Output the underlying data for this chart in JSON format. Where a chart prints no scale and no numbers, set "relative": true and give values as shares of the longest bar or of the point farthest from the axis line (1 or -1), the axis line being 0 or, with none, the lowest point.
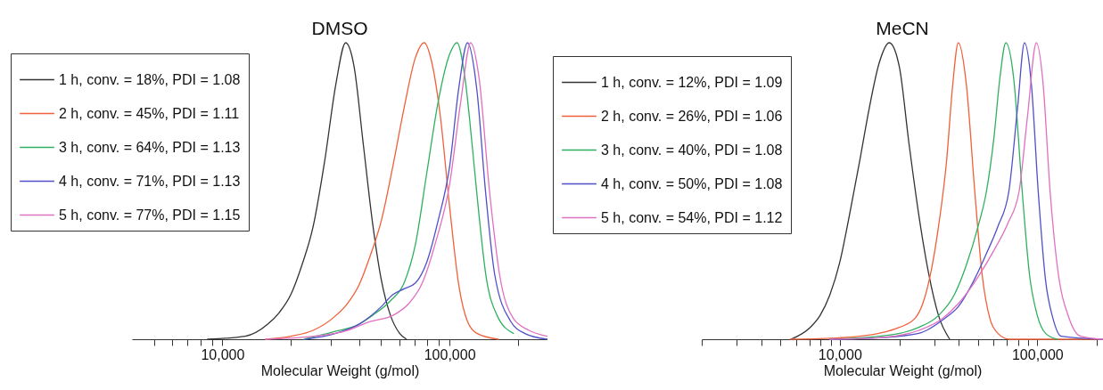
{
  "chart_data": [
    {
      "type": "line",
      "title": "DMSO",
      "xlabel": "Molecular Weight (g/mol)",
      "log": "x",
      "relative": true,
      "legend": "top left",
      "xlim": [
        4000,
        270000
      ],
      "xticks": [
        {
          "value": 5000,
          "label": null
        },
        {
          "value": 6000,
          "label": null
        },
        {
          "value": 7000,
          "label": null
        },
        {
          "value": 8000,
          "label": null
        },
        {
          "value": 9000,
          "label": null
        },
        {
          "value": 10000,
          "label": "10,000"
        },
        {
          "value": 20000,
          "label": null
        },
        {
          "value": 30000,
          "label": null
        },
        {
          "value": 40000,
          "label": null
        },
        {
          "value": 50000,
          "label": null
        },
        {
          "value": 60000,
          "label": null
        },
        {
          "value": 70000,
          "label": null
        },
        {
          "value": 80000,
          "label": null
        },
        {
          "value": 90000,
          "label": null
        },
        {
          "value": 100000,
          "label": "100,000"
        },
        {
          "value": 200000,
          "label": null
        }
      ],
      "series": [
        {
          "name": "1 h, conv. = 18%, PDI = 1.08",
          "color": "#333333",
          "x": [
            8610,
            12600,
            15800,
            17800,
            20000,
            22400,
            25100,
            28200,
            31600,
            34900,
            38000,
            41700,
            45700,
            50100,
            55000,
            60300,
            64600
          ],
          "values": [
            0,
            0.01,
            0.05,
            0.09,
            0.15,
            0.25,
            0.38,
            0.6,
            0.86,
            1,
            0.92,
            0.66,
            0.4,
            0.2,
            0.08,
            0.02,
            0
          ]
        },
        {
          "name": "2 h, conv. = 45%, PDI = 1.11",
          "color": "#f0603a",
          "x": [
            15500,
            20000,
            25100,
            31600,
            35500,
            39800,
            44700,
            50100,
            56200,
            63100,
            70800,
            77400,
            83200,
            91200,
            100000,
            110000,
            120000,
            132000,
            164000
          ],
          "values": [
            0,
            0.01,
            0.03,
            0.08,
            0.12,
            0.18,
            0.28,
            0.4,
            0.58,
            0.78,
            0.95,
            1,
            0.94,
            0.75,
            0.45,
            0.18,
            0.06,
            0.02,
            0
          ]
        },
        {
          "name": "3 h, conv. = 64%, PDI = 1.13",
          "color": "#2fb060",
          "x": [
            22900,
            30900,
            39800,
            45700,
            55000,
            63100,
            70800,
            79400,
            89100,
            100000,
            108000,
            117000,
            126000,
            132000,
            145000,
            162000,
            191000
          ],
          "values": [
            0,
            0.025,
            0.05,
            0.08,
            0.13,
            0.19,
            0.32,
            0.56,
            0.8,
            0.96,
            1,
            0.88,
            0.65,
            0.49,
            0.21,
            0.08,
            0.02
          ]
        },
        {
          "name": "4 h, conv. = 71%, PDI = 1.13",
          "color": "#5050c8",
          "x": [
            23200,
            31600,
            39800,
            50100,
            56200,
            63100,
            70800,
            79400,
            89100,
            100000,
            110000,
            120000,
            132000,
            144000,
            158000,
            186000,
            214000,
            269000
          ],
          "values": [
            0,
            0.02,
            0.05,
            0.11,
            0.15,
            0.17,
            0.19,
            0.26,
            0.4,
            0.58,
            0.85,
            1,
            0.84,
            0.5,
            0.22,
            0.06,
            0.02,
            0
          ]
        },
        {
          "name": "5 h, conv. = 77%, PDI = 1.15",
          "color": "#e070c0",
          "x": [
            15500,
            25100,
            35500,
            44700,
            56200,
            66100,
            75900,
            87100,
            100000,
            112000,
            124000,
            135000,
            150000,
            166000,
            191000,
            224000,
            269000
          ],
          "values": [
            0,
            0.01,
            0.03,
            0.06,
            0.08,
            0.12,
            0.19,
            0.33,
            0.52,
            0.8,
            1,
            0.88,
            0.5,
            0.22,
            0.07,
            0.03,
            0.01
          ]
        }
      ]
    },
    {
      "type": "line",
      "title": "MeCN",
      "xlabel": "Molecular Weight (g/mol)",
      "log": "x",
      "relative": true,
      "legend": "top left",
      "xlim": [
        2000,
        215000
      ],
      "xticks": [
        {
          "value": 2000,
          "label": null
        },
        {
          "value": 3000,
          "label": null
        },
        {
          "value": 4000,
          "label": null
        },
        {
          "value": 5000,
          "label": null
        },
        {
          "value": 6000,
          "label": null
        },
        {
          "value": 7000,
          "label": null
        },
        {
          "value": 8000,
          "label": null
        },
        {
          "value": 9000,
          "label": null
        },
        {
          "value": 10000,
          "label": "10,000"
        },
        {
          "value": 20000,
          "label": null
        },
        {
          "value": 30000,
          "label": null
        },
        {
          "value": 40000,
          "label": null
        },
        {
          "value": 50000,
          "label": null
        },
        {
          "value": 60000,
          "label": null
        },
        {
          "value": 70000,
          "label": null
        },
        {
          "value": 80000,
          "label": null
        },
        {
          "value": 90000,
          "label": null
        },
        {
          "value": 100000,
          "label": "100,000"
        },
        {
          "value": 200000,
          "label": null
        }
      ],
      "series": [
        {
          "name": "1 h, conv. = 12%, PDI = 1.09",
          "color": "#333333",
          "x": [
            5650,
            7080,
            7940,
            8910,
            10000,
            11200,
            12600,
            14100,
            15800,
            17800,
            20000,
            22400,
            25100,
            28200,
            31600,
            36000
          ],
          "values": [
            0,
            0.04,
            0.08,
            0.15,
            0.26,
            0.42,
            0.6,
            0.78,
            0.93,
            1,
            0.92,
            0.66,
            0.42,
            0.22,
            0.08,
            0
          ]
        },
        {
          "name": "2 h, conv. = 26%, PDI = 1.06",
          "color": "#f0603a",
          "x": [
            5620,
            10000,
            15800,
            20000,
            24000,
            26300,
            28800,
            31600,
            34700,
            37200,
            39800,
            43700,
            48200,
            52500,
            57500,
            63100,
            72400,
            214000
          ],
          "values": [
            0,
            0.005,
            0.02,
            0.04,
            0.07,
            0.12,
            0.22,
            0.38,
            0.6,
            0.85,
            1,
            0.86,
            0.5,
            0.22,
            0.07,
            0.02,
            0,
            0
          ]
        },
        {
          "name": "3 h, conv. = 40%, PDI = 1.08",
          "color": "#2fb060",
          "x": [
            8910,
            15800,
            25100,
            31600,
            38000,
            43700,
            50100,
            55300,
            60300,
            64600,
            69300,
            75900,
            83800,
            91200,
            100000,
            110000,
            126000
          ],
          "values": [
            0,
            0.01,
            0.04,
            0.08,
            0.15,
            0.25,
            0.38,
            0.5,
            0.68,
            0.88,
            1,
            0.88,
            0.5,
            0.22,
            0.08,
            0.02,
            0
          ]
        },
        {
          "name": "4 h, conv. = 50%, PDI = 1.08",
          "color": "#5050c8",
          "x": [
            8910,
            15800,
            25100,
            33900,
            39800,
            47900,
            56200,
            63100,
            71800,
            79400,
            86100,
            93300,
            101000,
            110000,
            120000,
            132000,
            214000
          ],
          "values": [
            0,
            0.005,
            0.02,
            0.07,
            0.11,
            0.2,
            0.3,
            0.38,
            0.5,
            0.78,
            1,
            0.86,
            0.5,
            0.2,
            0.07,
            0.01,
            0
          ]
        },
        {
          "name": "5 h, conv. = 54%, PDI = 1.12",
          "color": "#e070c0",
          "x": [
            8910,
            15800,
            25100,
            33100,
            39800,
            50100,
            60300,
            70800,
            80900,
            89100,
            98900,
            107000,
            116000,
            126000,
            145000,
            166000,
            214000
          ],
          "values": [
            0,
            0.005,
            0.03,
            0.07,
            0.12,
            0.21,
            0.3,
            0.39,
            0.5,
            0.75,
            1,
            0.86,
            0.5,
            0.25,
            0.07,
            0.01,
            0
          ]
        }
      ]
    }
  ]
}
